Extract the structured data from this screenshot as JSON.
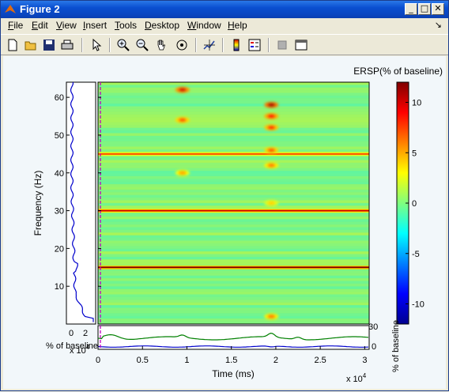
{
  "window": {
    "title": "Figure 2",
    "min_label": "_",
    "max_label": "□",
    "close_label": "✕",
    "dock_label": "↘"
  },
  "menu": [
    "File",
    "Edit",
    "View",
    "Insert",
    "Tools",
    "Desktop",
    "Window",
    "Help"
  ],
  "toolbar_icons": [
    "new-icon",
    "open-icon",
    "save-icon",
    "print-icon",
    "pointer-icon",
    "zoom-in-icon",
    "zoom-out-icon",
    "pan-icon",
    "rotate-icon",
    "data-cursor-icon",
    "colorbar-icon",
    "legend-icon",
    "hide-tools-icon",
    "plot-browser-icon"
  ],
  "plot": {
    "ersp_label": "ERSP(% of baseline)",
    "ylabel": "Frequency (Hz)",
    "xlabel": "Time (ms)",
    "x_scale_note": "x 10",
    "x_scale_exp": "4",
    "left_scale_note": "x 10",
    "left_scale_exp": "4",
    "left_xlabel": "% of baseline",
    "right_vlabel": "% of baseline",
    "y_ticks": [
      "10",
      "20",
      "30",
      "40",
      "50",
      "60"
    ],
    "y_tick_values": [
      10,
      20,
      30,
      40,
      50,
      60
    ],
    "y_range": [
      0,
      64
    ],
    "x_ticks": [
      "0",
      "0.5",
      "1",
      "1.5",
      "2",
      "2.5",
      "3"
    ],
    "x_tick_values": [
      0,
      0.5,
      1,
      1.5,
      2,
      2.5,
      3
    ],
    "x_range": [
      0,
      3.05
    ],
    "left_x_ticks": [
      "0",
      "2"
    ],
    "cb_ticks": [
      "10",
      "5",
      "0",
      "-5",
      "-10"
    ],
    "cb_tick_values": [
      10,
      5,
      0,
      -5,
      -10
    ],
    "cb_range": [
      -12,
      12
    ],
    "bottom_ticks": [
      "30",
      "0"
    ],
    "freq_bands": [
      {
        "freq": 15,
        "strength": 1.0
      },
      {
        "freq": 30,
        "strength": 0.85
      },
      {
        "freq": 45,
        "strength": 0.6
      }
    ],
    "hot_spots": [
      {
        "t": 0.95,
        "f": 62,
        "v": 10
      },
      {
        "t": 1.95,
        "f": 58,
        "v": 11
      },
      {
        "t": 1.95,
        "f": 55,
        "v": 9
      },
      {
        "t": 1.95,
        "f": 52,
        "v": 8
      },
      {
        "t": 1.95,
        "f": 46,
        "v": 7
      },
      {
        "t": 1.95,
        "f": 42,
        "v": 6
      },
      {
        "t": 0.95,
        "f": 54,
        "v": 7
      },
      {
        "t": 0.95,
        "f": 40,
        "v": 5
      },
      {
        "t": 1.95,
        "f": 32,
        "v": 4
      },
      {
        "t": 1.95,
        "f": 2,
        "v": 6
      }
    ]
  }
}
